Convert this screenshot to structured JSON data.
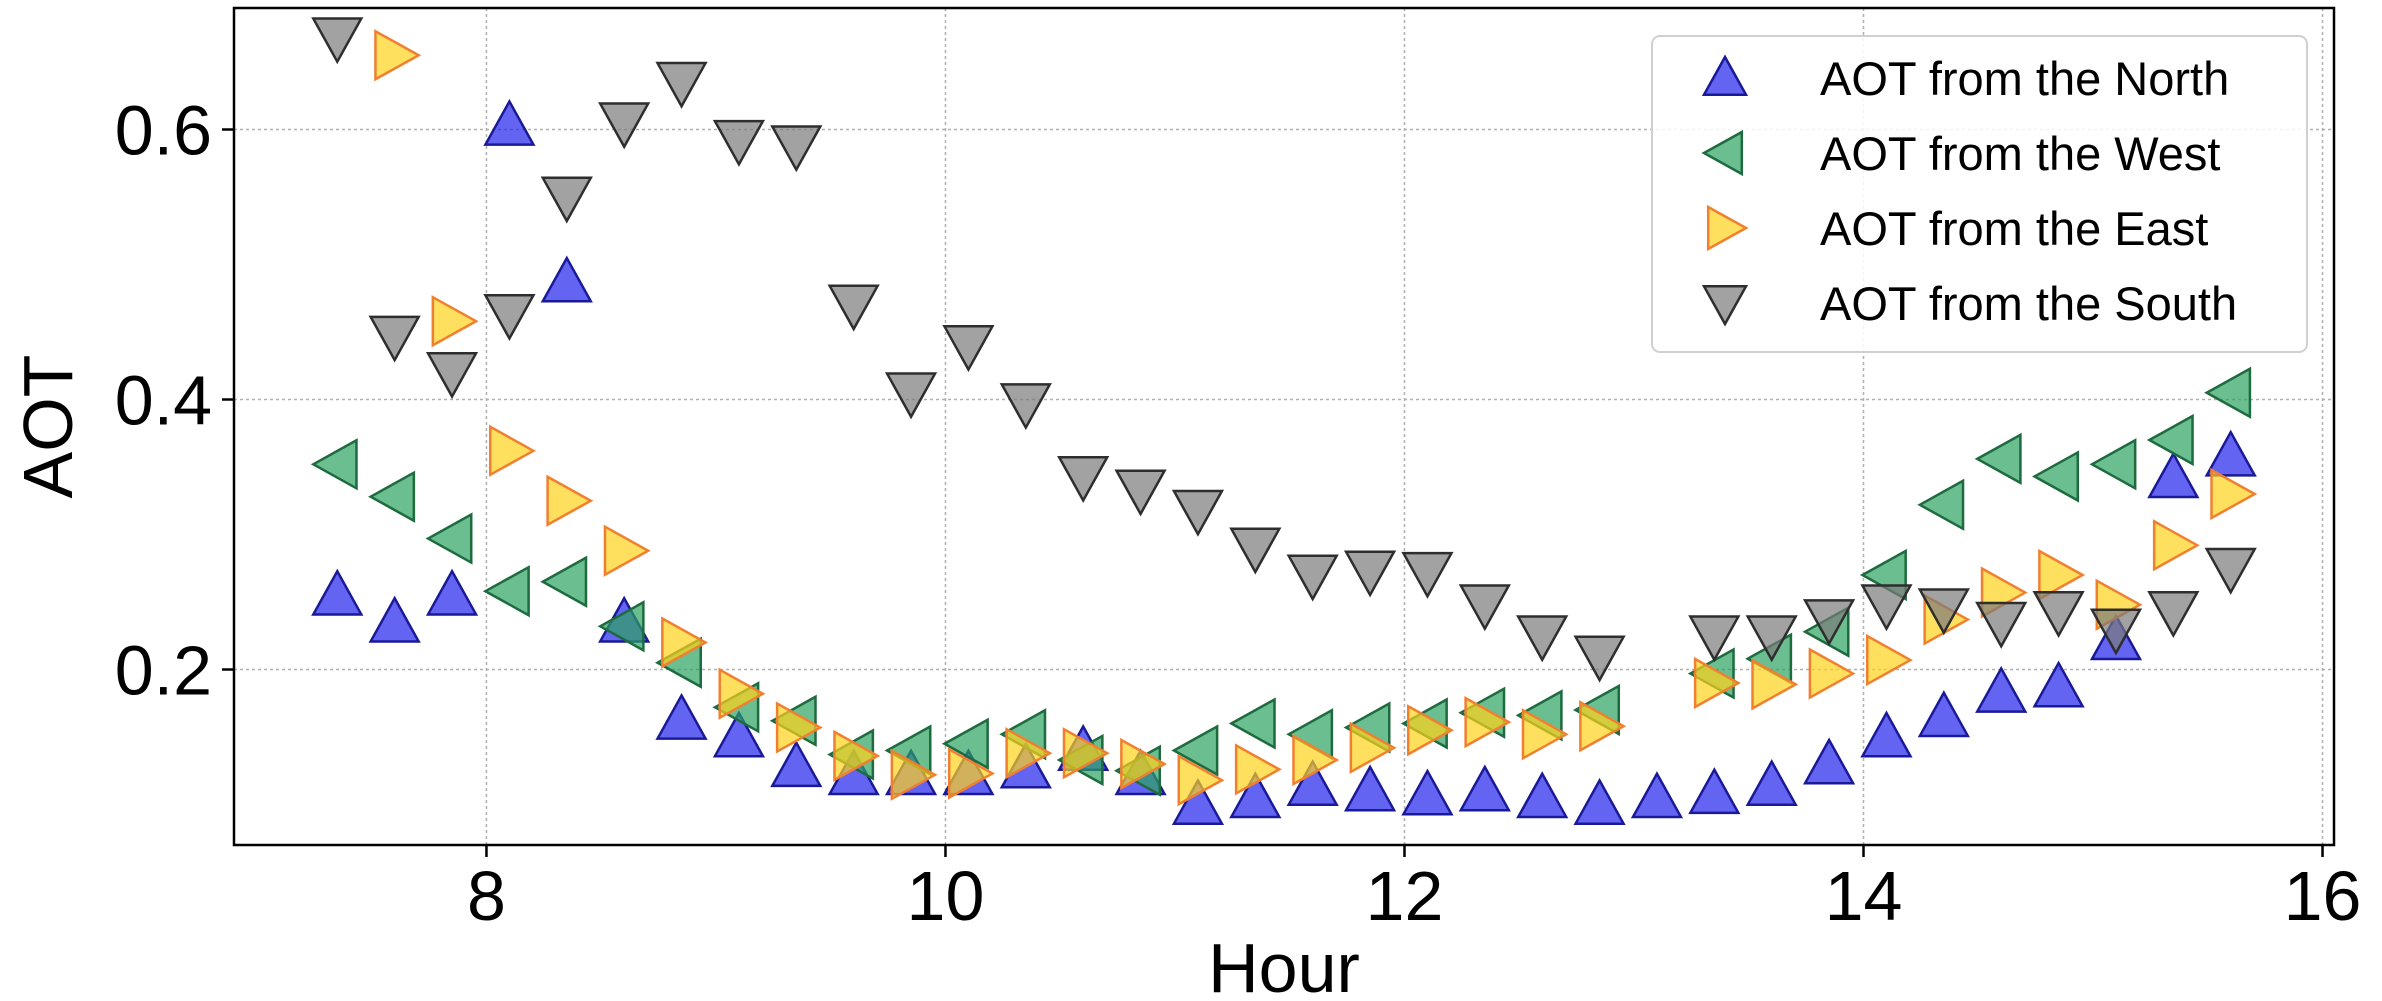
{
  "chart_data": {
    "type": "scatter",
    "title": "",
    "xlabel": "Hour",
    "ylabel": "AOT",
    "xlim": [
      6.9,
      16.05
    ],
    "ylim": [
      0.07,
      0.69
    ],
    "xticks": [
      8,
      10,
      12,
      14,
      16
    ],
    "yticks": [
      0.2,
      0.4,
      0.6
    ],
    "xtick_labels": [
      "8",
      "10",
      "12",
      "14",
      "16"
    ],
    "ytick_labels": [
      "0.2",
      "0.4",
      "0.6"
    ],
    "grid": true,
    "legend_position": "top-right",
    "series": [
      {
        "name": "AOT from the North",
        "marker": "triangle-up",
        "color": "#2222ee",
        "edge": "#1a1a99",
        "x": [
          7.35,
          7.6,
          7.85,
          8.1,
          8.35,
          8.6,
          8.85,
          9.1,
          9.35,
          9.6,
          9.85,
          10.1,
          10.35,
          10.6,
          10.85,
          11.1,
          11.35,
          11.6,
          11.85,
          12.1,
          12.35,
          12.6,
          12.85,
          13.1,
          13.35,
          13.6,
          13.85,
          14.1,
          14.35,
          14.6,
          14.85,
          15.1,
          15.35,
          15.6
        ],
        "y": [
          0.255,
          0.235,
          0.255,
          0.603,
          0.487,
          0.235,
          0.163,
          0.15,
          0.128,
          0.122,
          0.122,
          0.122,
          0.127,
          0.14,
          0.122,
          0.1,
          0.105,
          0.114,
          0.11,
          0.107,
          0.11,
          0.105,
          0.1,
          0.105,
          0.108,
          0.114,
          0.13,
          0.15,
          0.165,
          0.183,
          0.187,
          0.222,
          0.342,
          0.358
        ]
      },
      {
        "name": "AOT from the West",
        "marker": "triangle-left",
        "color": "#2ca25f",
        "edge": "#1d6b3e",
        "x": [
          7.35,
          7.6,
          7.85,
          8.1,
          8.35,
          8.6,
          8.85,
          9.1,
          9.35,
          9.6,
          9.85,
          10.1,
          10.35,
          10.6,
          10.85,
          11.1,
          11.35,
          11.6,
          11.85,
          12.1,
          12.35,
          12.6,
          12.85,
          13.35,
          13.6,
          13.85,
          14.1,
          14.35,
          14.6,
          14.85,
          15.1,
          15.35,
          15.6
        ],
        "y": [
          0.352,
          0.328,
          0.297,
          0.258,
          0.265,
          0.232,
          0.205,
          0.172,
          0.162,
          0.137,
          0.14,
          0.145,
          0.152,
          0.133,
          0.125,
          0.14,
          0.16,
          0.152,
          0.157,
          0.16,
          0.168,
          0.166,
          0.17,
          0.197,
          0.208,
          0.228,
          0.27,
          0.322,
          0.356,
          0.343,
          0.352,
          0.37,
          0.405
        ]
      },
      {
        "name": "AOT from the East",
        "marker": "triangle-right",
        "color": "#ffd21a",
        "edge": "#f08030",
        "x": [
          7.6,
          7.85,
          8.1,
          8.35,
          8.6,
          8.85,
          9.1,
          9.35,
          9.6,
          9.85,
          10.1,
          10.35,
          10.6,
          10.85,
          11.1,
          11.35,
          11.6,
          11.85,
          12.1,
          12.35,
          12.6,
          12.85,
          13.35,
          13.6,
          13.85,
          14.1,
          14.35,
          14.6,
          14.85,
          15.1,
          15.35,
          15.6
        ],
        "y": [
          0.655,
          0.458,
          0.362,
          0.325,
          0.288,
          0.22,
          0.182,
          0.157,
          0.136,
          0.122,
          0.123,
          0.138,
          0.138,
          0.13,
          0.118,
          0.126,
          0.133,
          0.142,
          0.155,
          0.161,
          0.152,
          0.158,
          0.19,
          0.189,
          0.197,
          0.207,
          0.237,
          0.257,
          0.27,
          0.248,
          0.292,
          0.33
        ]
      },
      {
        "name": "AOT from the South",
        "marker": "triangle-down",
        "color": "#7a7a7a",
        "edge": "#2e2e2e",
        "x": [
          7.35,
          7.6,
          7.85,
          8.1,
          8.35,
          8.6,
          8.85,
          9.1,
          9.35,
          9.6,
          9.85,
          10.1,
          10.35,
          10.6,
          10.85,
          11.1,
          11.35,
          11.6,
          11.85,
          12.1,
          12.35,
          12.6,
          12.85,
          13.35,
          13.6,
          13.85,
          14.1,
          14.35,
          14.6,
          14.85,
          15.1,
          15.35,
          15.6
        ],
        "y": [
          0.668,
          0.447,
          0.42,
          0.463,
          0.55,
          0.605,
          0.635,
          0.592,
          0.588,
          0.47,
          0.405,
          0.44,
          0.397,
          0.343,
          0.333,
          0.318,
          0.29,
          0.27,
          0.273,
          0.272,
          0.248,
          0.225,
          0.21,
          0.225,
          0.225,
          0.237,
          0.248,
          0.245,
          0.235,
          0.243,
          0.23,
          0.243,
          0.275
        ]
      }
    ]
  }
}
